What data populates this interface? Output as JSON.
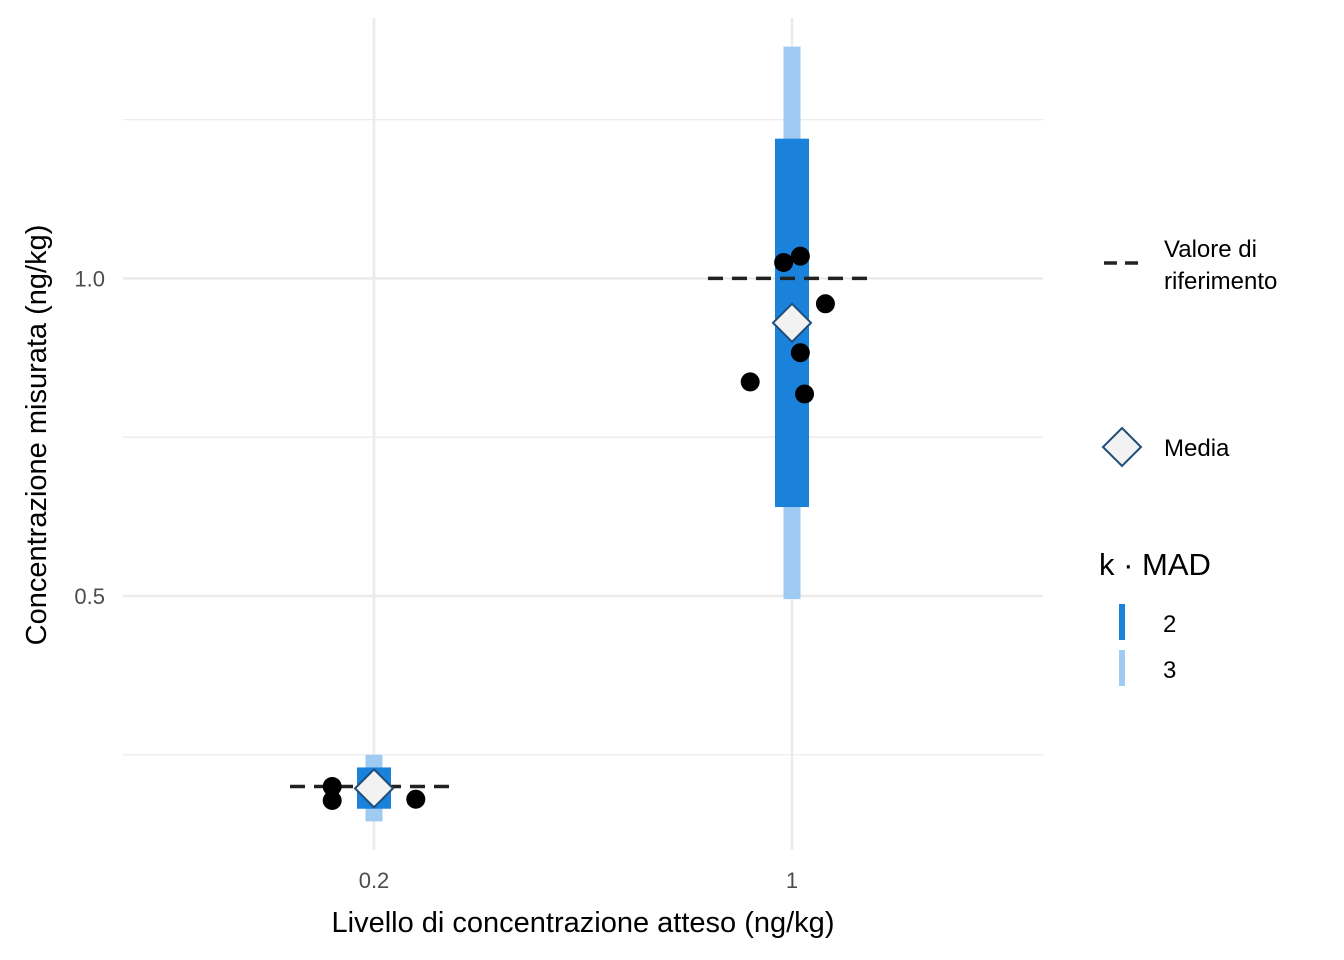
{
  "chart_data": {
    "type": "scatter",
    "title": "",
    "xlabel": "Livello di concentrazione atteso (ng/kg)",
    "ylabel": "Concentrazione misurata (ng/kg)",
    "x_ticks": [
      "0.2",
      "1"
    ],
    "y_ticks": [
      0.5,
      1.0
    ],
    "y_tick_labels": [
      "0.5",
      "1.0"
    ],
    "ylim": [
      0.1,
      1.41
    ],
    "grid": true,
    "legend_position": "right",
    "colors": {
      "band_k2": "#1b82dc",
      "band_k3": "#9fcbf2",
      "points": "#000000",
      "reference": "#222222",
      "mean_fill": "#f2f2f2",
      "mean_stroke": "#1f4e79",
      "grid": "#ebebeb"
    },
    "groups": [
      {
        "x": "0.2",
        "reference": 0.2,
        "mean": 0.197,
        "band_k2": [
          0.165,
          0.23
        ],
        "band_k3": [
          0.145,
          0.25
        ],
        "points": [
          {
            "offset": -0.05,
            "y": 0.2
          },
          {
            "offset": 0.0,
            "y": 0.2
          },
          {
            "offset": -0.05,
            "y": 0.178
          },
          {
            "offset": 0.05,
            "y": 0.18
          }
        ]
      },
      {
        "x": "1",
        "reference": 1.0,
        "mean": 0.93,
        "band_k2": [
          0.64,
          1.22
        ],
        "band_k3": [
          0.495,
          1.365
        ],
        "points": [
          {
            "offset": -0.01,
            "y": 1.025
          },
          {
            "offset": 0.01,
            "y": 1.035
          },
          {
            "offset": 0.04,
            "y": 0.96
          },
          {
            "offset": 0.01,
            "y": 0.883
          },
          {
            "offset": -0.05,
            "y": 0.837
          },
          {
            "offset": 0.015,
            "y": 0.818
          }
        ]
      }
    ],
    "legend": {
      "reference_label": "Valore di\nriferimento",
      "mean_label": "Media",
      "band_title": "k · MAD",
      "band_entries": [
        "2",
        "3"
      ]
    }
  }
}
